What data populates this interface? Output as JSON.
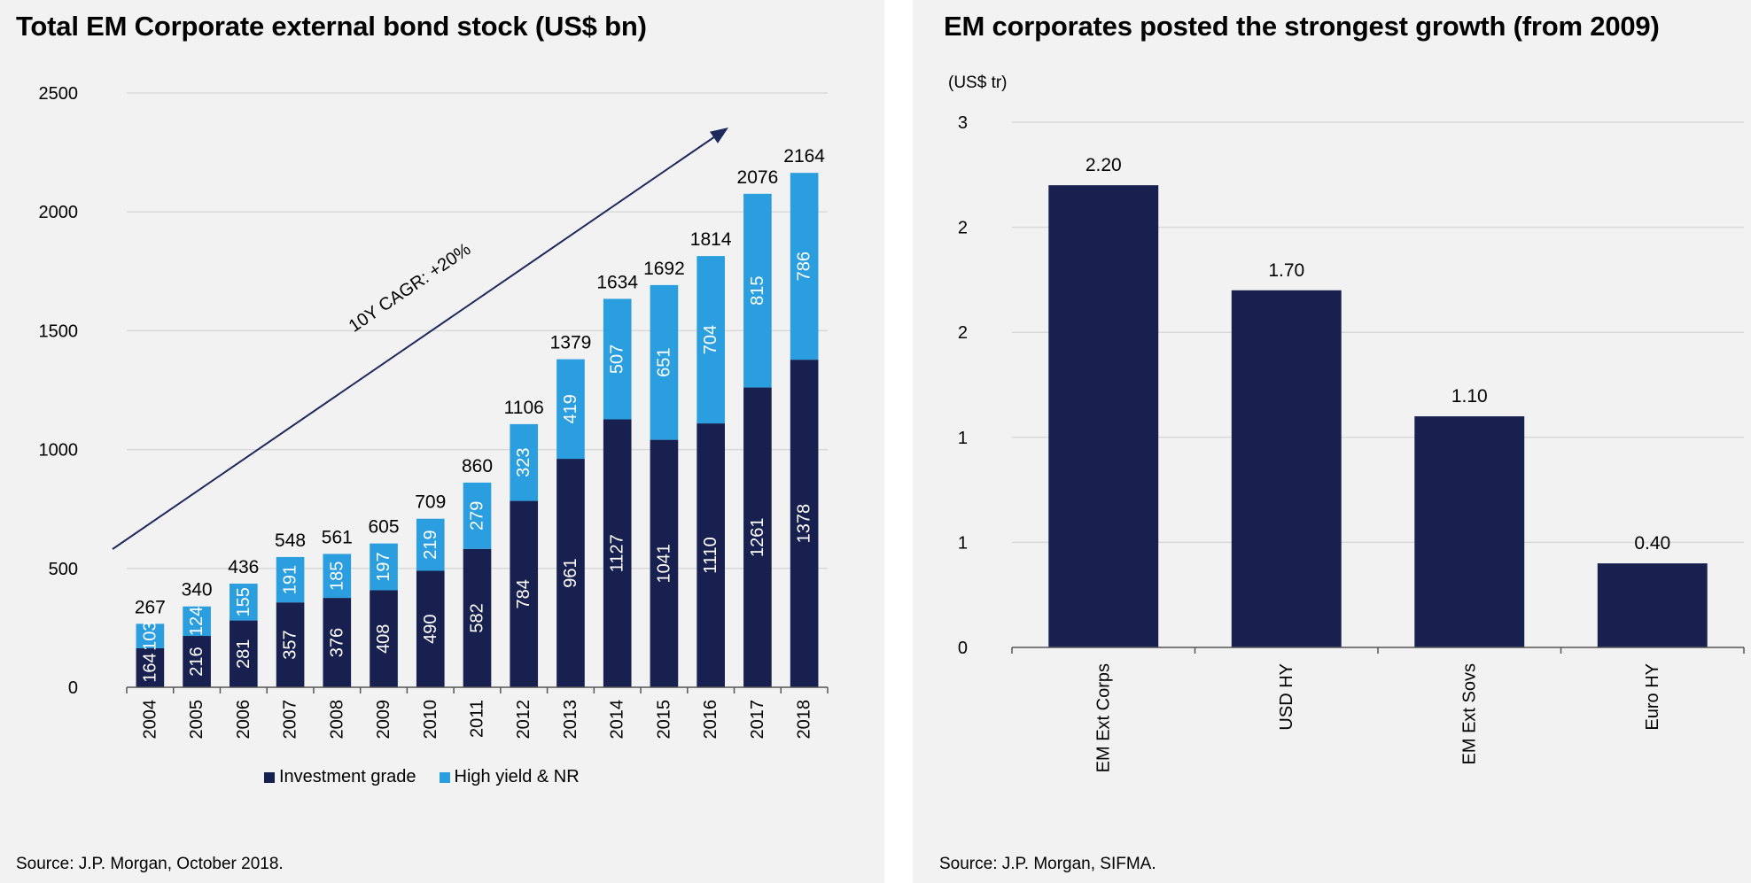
{
  "colors": {
    "investment_grade": "#17204f",
    "high_yield": "#2b9ee0",
    "em_bar": "#17204f",
    "gridline": "#d9d9d9",
    "axis": "#555555",
    "arrow": "#1f2a5c",
    "panel_bg": "#f2f2f2"
  },
  "left": {
    "title": "Total EM Corporate external bond stock (US$ bn)",
    "source": "Source: J.P. Morgan, October 2018.",
    "annotation": "10Y CAGR: +20%",
    "legend": [
      {
        "label": "Investment grade",
        "series": "investment_grade"
      },
      {
        "label": "High yield & NR",
        "series": "high_yield"
      }
    ]
  },
  "right": {
    "title": "EM corporates posted the strongest growth (from 2009)",
    "unit_label": "(US$ tr)",
    "source": "Source: J.P. Morgan, SIFMA."
  },
  "chart_data": [
    {
      "type": "bar",
      "stacked": true,
      "title": "Total EM Corporate external bond stock (US$ bn)",
      "xlabel": "",
      "ylabel": "",
      "categories": [
        "2004",
        "2005",
        "2006",
        "2007",
        "2008",
        "2009",
        "2010",
        "2011",
        "2012",
        "2013",
        "2014",
        "2015",
        "2016",
        "2017",
        "2018"
      ],
      "series": [
        {
          "name": "Investment grade",
          "values": [
            164,
            216,
            281,
            357,
            376,
            408,
            490,
            582,
            784,
            961,
            1127,
            1041,
            1110,
            1261,
            1378
          ]
        },
        {
          "name": "High yield & NR",
          "values": [
            103,
            124,
            155,
            191,
            185,
            197,
            219,
            279,
            323,
            419,
            507,
            651,
            704,
            815,
            786
          ]
        }
      ],
      "totals": [
        267,
        340,
        436,
        548,
        561,
        605,
        709,
        860,
        1106,
        1379,
        1634,
        1692,
        1814,
        2076,
        2164
      ],
      "yticks": [
        "0",
        "500",
        "1000",
        "1500",
        "2000",
        "2500"
      ],
      "ylim": [
        0,
        2500
      ],
      "grid": true,
      "legend_position": "bottom",
      "annotations": [
        {
          "text": "10Y CAGR: +20%",
          "type": "arrow",
          "from_category": "2004",
          "to_category": "2017"
        }
      ]
    },
    {
      "type": "bar",
      "title": "EM corporates posted the strongest growth (from 2009)",
      "xlabel": "",
      "ylabel": "(US$ tr)",
      "categories": [
        "EM Ext Corps",
        "USD HY",
        "EM Ext Sovs",
        "Euro HY"
      ],
      "values": [
        2.2,
        1.7,
        1.1,
        0.4
      ],
      "data_labels": [
        "2.20",
        "1.70",
        "1.10",
        "0.40"
      ],
      "yticks": [
        "0",
        "1",
        "1",
        "2",
        "2",
        "3"
      ],
      "ylim": [
        0,
        2.5
      ],
      "grid": true
    }
  ]
}
